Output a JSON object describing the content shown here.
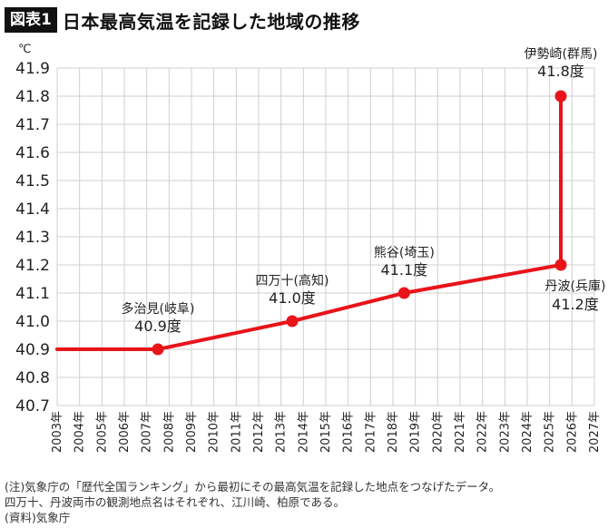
{
  "header": {
    "badge": "図表1",
    "title": "日本最高気温を記録した地域の推移"
  },
  "chart_data": {
    "type": "line",
    "unit": "℃",
    "ylim": [
      40.7,
      41.9
    ],
    "yticks": [
      "40.7",
      "40.8",
      "40.9",
      "41.0",
      "41.1",
      "41.2",
      "41.3",
      "41.4",
      "41.5",
      "41.6",
      "41.7",
      "41.8",
      "41.9"
    ],
    "xticks": [
      "2003年",
      "2004年",
      "2005年",
      "2006年",
      "2007年",
      "2008年",
      "2009年",
      "2010年",
      "2011年",
      "2012年",
      "2013年",
      "2014年",
      "2015年",
      "2016年",
      "2017年",
      "2018年",
      "2019年",
      "2020年",
      "2021年",
      "2022年",
      "2023年",
      "2024年",
      "2025年",
      "2026年",
      "2027年"
    ],
    "xlim": [
      2003,
      2027
    ],
    "color": "#e8141a",
    "series": [
      {
        "x": [
          2003,
          2007.5,
          2013.5,
          2018.5,
          2025.5,
          2025.5
        ],
        "y": [
          40.9,
          40.9,
          41.0,
          41.1,
          41.2,
          41.8
        ]
      }
    ],
    "points": [
      {
        "x": 2007.5,
        "y": 40.9,
        "label": "多治見(岐阜)",
        "value": "40.9度"
      },
      {
        "x": 2013.5,
        "y": 41.0,
        "label": "四万十(高知)",
        "value": "41.0度"
      },
      {
        "x": 2018.5,
        "y": 41.1,
        "label": "熊谷(埼玉)",
        "value": "41.1度"
      },
      {
        "x": 2025.5,
        "y": 41.2,
        "label": "丹波(兵庫)",
        "value": "41.2度"
      },
      {
        "x": 2025.5,
        "y": 41.8,
        "label": "伊勢崎(群馬)",
        "value": "41.8度"
      }
    ]
  },
  "notes": [
    "(注)気象庁の「歴代全国ランキング」から最初にその最高気温を記録した地点をつなげたデータ。",
    "四万十、丹波両市の観測地点名はそれぞれ、江川崎、柏原である。",
    "(資料)気象庁"
  ]
}
